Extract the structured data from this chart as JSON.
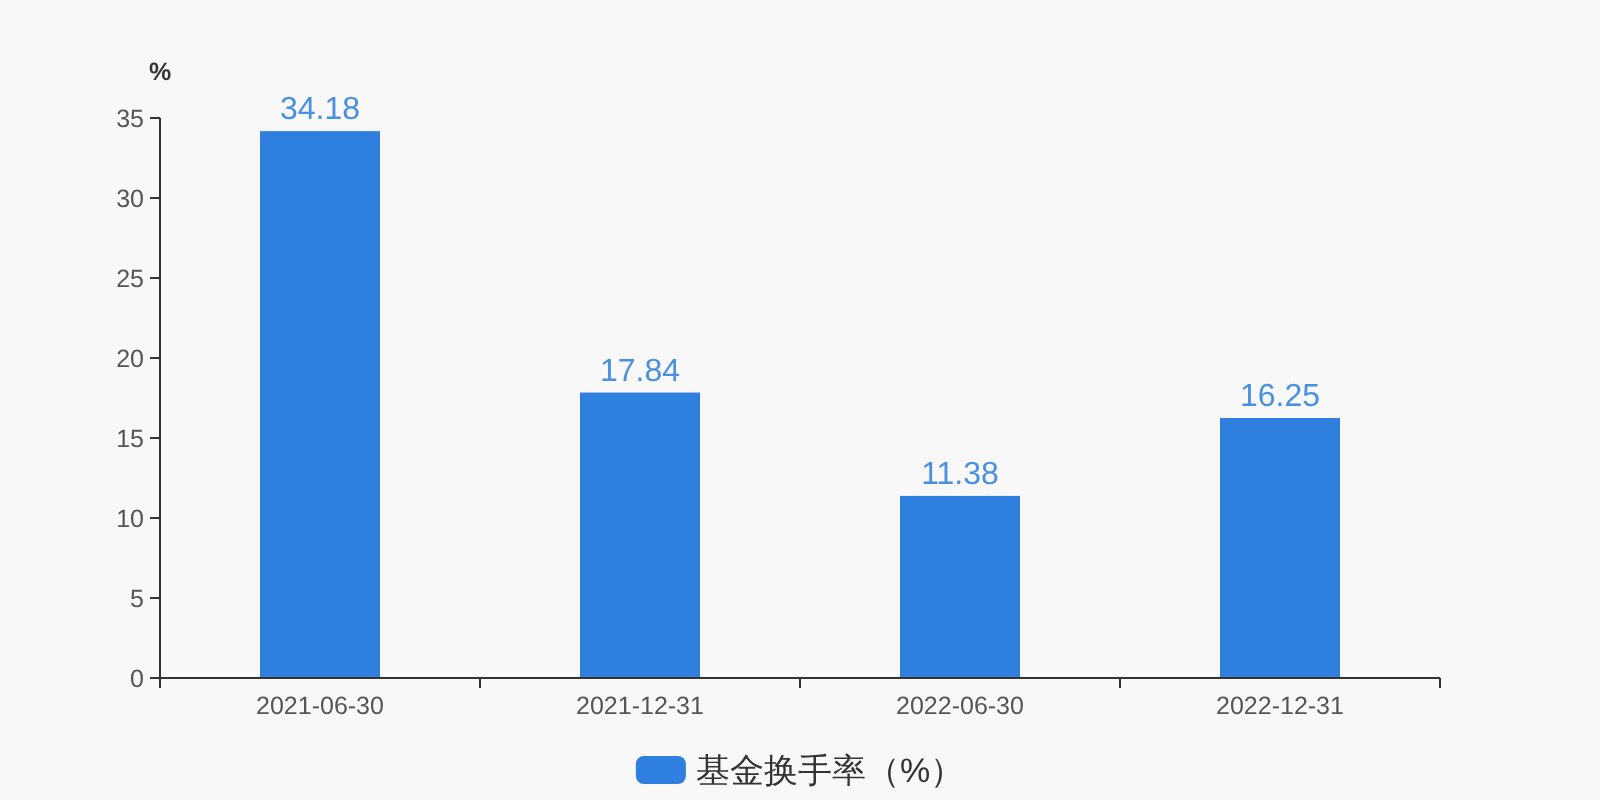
{
  "chart_data": {
    "type": "bar",
    "ylabel": "%",
    "categories": [
      "2021-06-30",
      "2021-12-31",
      "2022-06-30",
      "2022-12-31"
    ],
    "series": [
      {
        "name": "基金换手率（%）",
        "color": "#2e7fdf",
        "values": [
          34.18,
          17.84,
          11.38,
          16.25
        ]
      }
    ],
    "ylim": [
      0,
      35
    ],
    "yticks": [
      0,
      5,
      10,
      15,
      20,
      25,
      30,
      35
    ],
    "data_labels": true,
    "legend": "bottom",
    "grid": false
  }
}
